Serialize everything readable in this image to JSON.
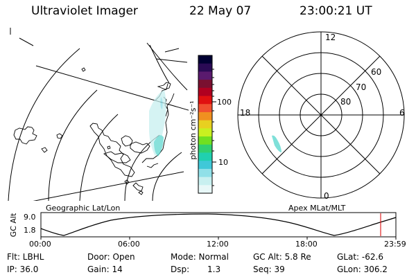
{
  "header": {
    "title": "Ultraviolet Imager",
    "date": "22 May 07",
    "time": "23:00:21 UT"
  },
  "colorbar": {
    "unit_label": "photon cm⁻²s⁻¹",
    "scale": "log",
    "tick_labels": [
      "100",
      "10"
    ],
    "colors": [
      "#000033",
      "#2a0a55",
      "#5a1a6e",
      "#7a1030",
      "#b00020",
      "#e01010",
      "#f05030",
      "#f09020",
      "#e8d020",
      "#c8f020",
      "#70e020",
      "#30d070",
      "#20d0b0",
      "#40c8d8",
      "#90e0e8",
      "#c8f0f0",
      "#e8f8f8"
    ]
  },
  "left_map": {
    "label": "Geographic Lat/Lon",
    "emission_color": "#5fd8d0"
  },
  "right_map": {
    "label": "Apex MLat/MLT",
    "mlt_labels": [
      "12",
      "18",
      "6",
      "0"
    ],
    "lat_labels": [
      "60",
      "70",
      "80"
    ],
    "emission_color": "#5fd8d0"
  },
  "timeline": {
    "ylabel": "GC Alt",
    "y_ticks": [
      "9.0",
      "1.8"
    ],
    "x_ticks": [
      "00:00",
      "06:00",
      "12:00",
      "18:00",
      "23:59"
    ],
    "current_marker_color": "#e02020"
  },
  "status": {
    "row1": {
      "filter": "Flt: LBHL",
      "door": "Door: Open",
      "mode": "Mode: Normal",
      "gc_alt": "GC Alt: 5.8 Re",
      "glat": "GLat: -62.6"
    },
    "row2": {
      "ip": "IP: 36.0",
      "gain": "Gain: 14",
      "dsp_label": "Dsp:",
      "dsp_value": "1.3",
      "seq": "Seq: 39",
      "glon": "GLon: 306.2"
    }
  }
}
